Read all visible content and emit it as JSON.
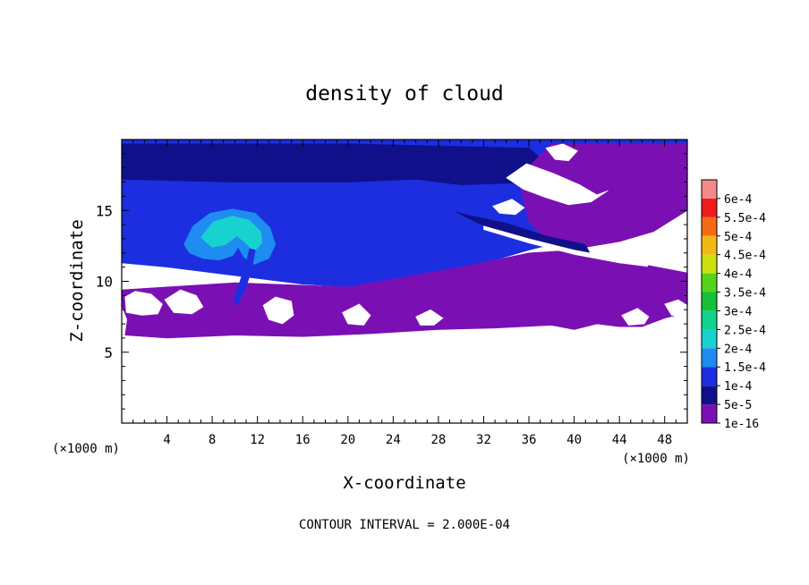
{
  "chart_data": {
    "type": "heatmap",
    "title": "density of cloud",
    "xlabel": "X-coordinate",
    "ylabel": "Z-coordinate",
    "x_unit_left": "(×1000 m)",
    "x_unit_right": "(×1000 m)",
    "xlim": [
      0,
      50
    ],
    "ylim": [
      0,
      20
    ],
    "x_ticks": [
      4,
      8,
      12,
      16,
      20,
      24,
      28,
      32,
      36,
      40,
      44,
      48
    ],
    "y_ticks": [
      5,
      10,
      15
    ],
    "footer": "CONTOUR INTERVAL = 2.000E-04",
    "colorbar": {
      "levels": [
        "1e-16",
        "5e-5",
        "1e-4",
        "1.5e-4",
        "2e-4",
        "2.5e-4",
        "3e-4",
        "3.5e-4",
        "4e-4",
        "4.5e-4",
        "5e-4",
        "5.5e-4",
        "6e-4"
      ],
      "colors": [
        "#7a10b4",
        "#10108a",
        "#1c2ee0",
        "#1e8cf0",
        "#18d2d0",
        "#12d28a",
        "#16c03a",
        "#54d41a",
        "#cce010",
        "#f2b814",
        "#f66a12",
        "#ee1c18",
        "#f28a8a"
      ]
    },
    "regions": [
      {
        "name": "upper-cloud-layer",
        "level": 2,
        "polygon": [
          [
            0,
            11.3
          ],
          [
            4,
            11
          ],
          [
            8,
            10.6
          ],
          [
            12,
            10.2
          ],
          [
            16,
            9.8
          ],
          [
            20,
            9.6
          ],
          [
            24,
            9.8
          ],
          [
            28,
            10.2
          ],
          [
            30,
            10.8
          ],
          [
            33,
            11.5
          ],
          [
            36,
            12.2
          ],
          [
            40,
            13
          ],
          [
            42,
            13.5
          ],
          [
            44,
            14.3
          ],
          [
            46,
            14.8
          ],
          [
            48,
            14.8
          ],
          [
            50,
            15.2
          ],
          [
            50,
            20
          ],
          [
            0,
            20
          ]
        ]
      },
      {
        "name": "upper-cloud-deep-layer",
        "level": 1,
        "polygon": [
          [
            0,
            19.7
          ],
          [
            20,
            19.7
          ],
          [
            36,
            19.4
          ],
          [
            38,
            18
          ],
          [
            37,
            17
          ],
          [
            30,
            16.8
          ],
          [
            26,
            17.2
          ],
          [
            20,
            17
          ],
          [
            10,
            17
          ],
          [
            0,
            17.2
          ]
        ]
      },
      {
        "name": "right-upper-cloud",
        "level": 1,
        "polygon": [
          [
            42.5,
            16.3
          ],
          [
            44.5,
            17.8
          ],
          [
            47,
            19
          ],
          [
            49.5,
            19.3
          ],
          [
            50,
            18
          ],
          [
            50,
            15.2
          ],
          [
            48,
            14.8
          ],
          [
            46,
            14.8
          ],
          [
            44,
            15.3
          ]
        ]
      },
      {
        "name": "lower-cloud-band",
        "level": 0,
        "polygon": [
          [
            0,
            8.3
          ],
          [
            0.5,
            7.3
          ],
          [
            0.3,
            6.2
          ],
          [
            4,
            6
          ],
          [
            10,
            6.2
          ],
          [
            16,
            6.1
          ],
          [
            22,
            6.3
          ],
          [
            28,
            6.6
          ],
          [
            33,
            6.7
          ],
          [
            38,
            6.9
          ],
          [
            40,
            6.6
          ],
          [
            42,
            7
          ],
          [
            44,
            6.8
          ],
          [
            46,
            6.8
          ],
          [
            48,
            7.4
          ],
          [
            50,
            7.8
          ],
          [
            50,
            10.6
          ],
          [
            44,
            11.5
          ],
          [
            40,
            12.2
          ],
          [
            36,
            12
          ],
          [
            30,
            11
          ],
          [
            20,
            9.6
          ],
          [
            10,
            9.9
          ],
          [
            4,
            9.6
          ],
          [
            0,
            9.4
          ]
        ]
      },
      {
        "name": "upper-right-cloud-band",
        "level": 0,
        "polygon": [
          [
            35,
            17.4
          ],
          [
            36.5,
            18.5
          ],
          [
            38,
            19.7
          ],
          [
            41,
            19.7
          ],
          [
            44,
            19.7
          ],
          [
            50,
            19.7
          ],
          [
            50,
            15
          ],
          [
            47,
            13.5
          ],
          [
            44,
            12.8
          ],
          [
            41,
            12.4
          ],
          [
            38,
            12.6
          ],
          [
            36,
            14.2
          ]
        ]
      },
      {
        "name": "anvil-outer",
        "level": 3,
        "polygon": [
          [
            5.5,
            12.6
          ],
          [
            6.3,
            13.9
          ],
          [
            7.8,
            14.8
          ],
          [
            9.8,
            15.1
          ],
          [
            11.8,
            14.8
          ],
          [
            13.1,
            13.8
          ],
          [
            13.6,
            12.6
          ],
          [
            13,
            11.6
          ],
          [
            11.7,
            11.2
          ],
          [
            10.8,
            11.7
          ],
          [
            10.3,
            12.4
          ],
          [
            9.8,
            11.8
          ],
          [
            8.6,
            11.5
          ],
          [
            7.2,
            11.6
          ],
          [
            6,
            12
          ]
        ]
      },
      {
        "name": "anvil-core",
        "level": 4,
        "polygon": [
          [
            7,
            13.1
          ],
          [
            8.1,
            14.2
          ],
          [
            9.8,
            14.6
          ],
          [
            11.3,
            14.3
          ],
          [
            12.3,
            13.5
          ],
          [
            12.4,
            12.7
          ],
          [
            11.7,
            12.1
          ],
          [
            11.1,
            12.6
          ],
          [
            10.2,
            13.2
          ],
          [
            9.2,
            12.6
          ],
          [
            8,
            12.4
          ]
        ]
      },
      {
        "name": "updraft-stem",
        "level": 2,
        "polygon": [
          [
            9.9,
            8.7
          ],
          [
            10.5,
            10.1
          ],
          [
            11,
            11.3
          ],
          [
            11.3,
            12.3
          ],
          [
            11.8,
            12.2
          ],
          [
            11.5,
            10.8
          ],
          [
            10.9,
            9.4
          ],
          [
            10.2,
            8.3
          ]
        ]
      },
      {
        "name": "shear-wedge",
        "level": 1,
        "polygon": [
          [
            29.5,
            14.9
          ],
          [
            31.5,
            14.1
          ],
          [
            35,
            13.1
          ],
          [
            38.5,
            12.4
          ],
          [
            41.5,
            11.8
          ],
          [
            41,
            12.6
          ],
          [
            37.5,
            13.2
          ],
          [
            34,
            14.1
          ],
          [
            31,
            14.6
          ]
        ]
      }
    ],
    "gaps": [
      {
        "name": "gap-left-low",
        "polygon": [
          [
            0.3,
            8.9
          ],
          [
            1.2,
            9.3
          ],
          [
            2.6,
            9.1
          ],
          [
            3.6,
            8.4
          ],
          [
            3.2,
            7.7
          ],
          [
            1.8,
            7.6
          ],
          [
            0.4,
            7.8
          ]
        ]
      },
      {
        "name": "gap-left-mid",
        "polygon": [
          [
            3.8,
            8.7
          ],
          [
            5.2,
            9.4
          ],
          [
            6.6,
            9
          ],
          [
            7.2,
            8.2
          ],
          [
            6.2,
            7.7
          ],
          [
            4.6,
            7.8
          ]
        ]
      },
      {
        "name": "gap-center-left",
        "polygon": [
          [
            12.5,
            8.3
          ],
          [
            13.6,
            8.9
          ],
          [
            15,
            8.6
          ],
          [
            15.2,
            7.6
          ],
          [
            14.2,
            7
          ],
          [
            13,
            7.3
          ]
        ]
      },
      {
        "name": "gap-center-right",
        "polygon": [
          [
            19.5,
            7.8
          ],
          [
            21,
            8.4
          ],
          [
            22,
            7.6
          ],
          [
            21.4,
            6.9
          ],
          [
            20,
            7
          ]
        ]
      },
      {
        "name": "gap-mid",
        "polygon": [
          [
            26,
            7.5
          ],
          [
            27.3,
            8
          ],
          [
            28.4,
            7.4
          ],
          [
            27.6,
            6.9
          ],
          [
            26.4,
            6.9
          ]
        ]
      },
      {
        "name": "gap-right-low",
        "polygon": [
          [
            44.2,
            7.6
          ],
          [
            45.6,
            8.1
          ],
          [
            46.6,
            7.5
          ],
          [
            46.2,
            7
          ],
          [
            44.8,
            6.9
          ]
        ]
      },
      {
        "name": "gap-right-low-2",
        "polygon": [
          [
            48,
            8.4
          ],
          [
            49.2,
            8.7
          ],
          [
            50,
            8.3
          ],
          [
            50,
            7.5
          ],
          [
            48.6,
            7.6
          ]
        ]
      },
      {
        "name": "gap-upper-right",
        "polygon": [
          [
            34,
            17.3
          ],
          [
            35.8,
            18.3
          ],
          [
            38.2,
            17.6
          ],
          [
            40.5,
            16.8
          ],
          [
            42,
            16.1
          ],
          [
            43,
            16.4
          ],
          [
            41.5,
            15.6
          ],
          [
            39.5,
            15.4
          ],
          [
            37.5,
            15.9
          ],
          [
            35.5,
            16.5
          ]
        ]
      },
      {
        "name": "gap-upper-right-2",
        "polygon": [
          [
            37.5,
            19.4
          ],
          [
            39,
            19.7
          ],
          [
            40.3,
            19.2
          ],
          [
            39.5,
            18.5
          ],
          [
            38.3,
            18.6
          ]
        ]
      },
      {
        "name": "gap-upper-right-3",
        "polygon": [
          [
            32.8,
            15.3
          ],
          [
            34.5,
            15.8
          ],
          [
            35.6,
            15.2
          ],
          [
            34.8,
            14.7
          ],
          [
            33.4,
            14.8
          ]
        ]
      },
      {
        "name": "gap-shear-line",
        "polygon": [
          [
            32,
            13.9
          ],
          [
            36,
            13
          ],
          [
            40,
            12.2
          ],
          [
            44,
            11.6
          ],
          [
            46.5,
            11.3
          ],
          [
            46.5,
            11.05
          ],
          [
            44,
            11.3
          ],
          [
            40,
            11.9
          ],
          [
            36,
            12.7
          ],
          [
            32,
            13.65
          ]
        ]
      }
    ]
  }
}
